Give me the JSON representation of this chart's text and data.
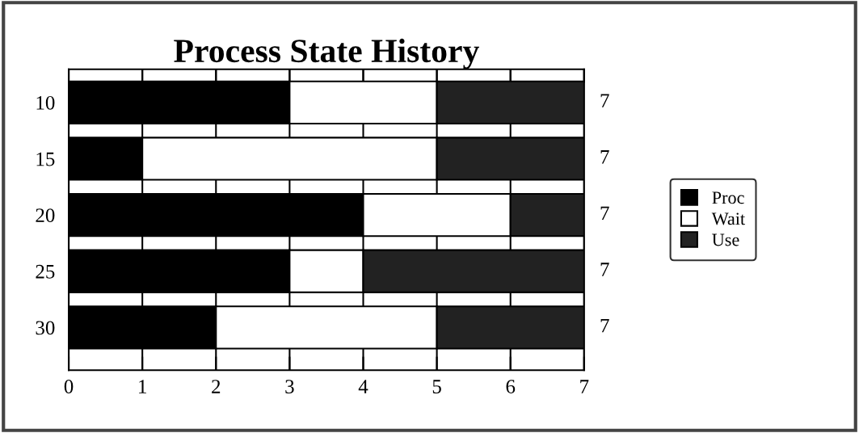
{
  "chart_data": {
    "type": "bar",
    "title": "Process State History",
    "orientation": "horizontal",
    "stacked": true,
    "categories": [
      "10",
      "15",
      "20",
      "25",
      "30"
    ],
    "series": [
      {
        "name": "Proc",
        "color": "#000000",
        "values": [
          3,
          1,
          4,
          3,
          2
        ]
      },
      {
        "name": "Wait",
        "color": "#ffffff",
        "values": [
          2,
          4,
          2,
          1,
          3
        ]
      },
      {
        "name": "Use",
        "color": "#222222",
        "values": [
          2,
          2,
          1,
          3,
          2
        ]
      }
    ],
    "totals": [
      "7",
      "7",
      "7",
      "7",
      "7"
    ],
    "xlim": [
      0,
      7
    ],
    "xticks": [
      0,
      1,
      2,
      3,
      4,
      5,
      6,
      7
    ],
    "grid": "x",
    "legend": "right"
  }
}
